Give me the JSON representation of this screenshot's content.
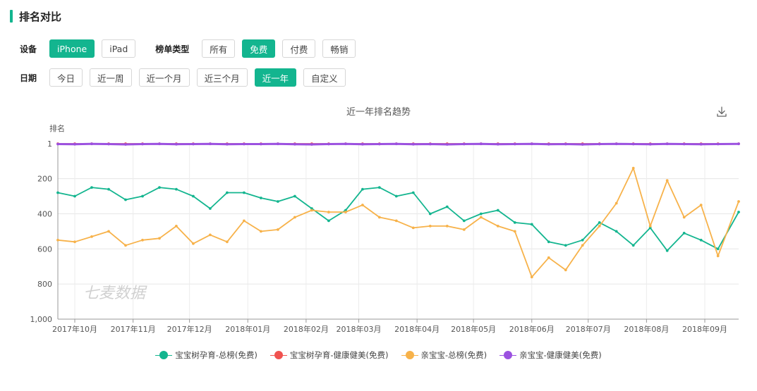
{
  "section": {
    "title": "排名对比"
  },
  "filters": {
    "device_label": "设备",
    "devices": [
      {
        "label": "iPhone",
        "active": true
      },
      {
        "label": "iPad",
        "active": false
      }
    ],
    "list_type_label": "榜单类型",
    "list_types": [
      {
        "label": "所有",
        "active": false
      },
      {
        "label": "免费",
        "active": true
      },
      {
        "label": "付费",
        "active": false
      },
      {
        "label": "畅销",
        "active": false
      }
    ],
    "date_label": "日期",
    "dates": [
      {
        "label": "今日",
        "active": false
      },
      {
        "label": "近一周",
        "active": false
      },
      {
        "label": "近一个月",
        "active": false
      },
      {
        "label": "近三个月",
        "active": false
      },
      {
        "label": "近一年",
        "active": true
      },
      {
        "label": "自定义",
        "active": false
      }
    ]
  },
  "watermark": "七麦数据",
  "icons": {
    "download": "download-icon"
  },
  "chart_data": {
    "type": "line",
    "title": "近一年排名趋势",
    "ylabel": "排名",
    "xlabel": "",
    "ylim": [
      1,
      1000
    ],
    "y_inverted": true,
    "y_ticks": [
      1,
      200,
      400,
      600,
      800,
      1000
    ],
    "y_tick_labels": [
      "1",
      "200",
      "400",
      "600",
      "800",
      "1,000"
    ],
    "x_range": [
      "2017-09-22",
      "2018-09-19"
    ],
    "x_ticks": [
      "2017-10-01",
      "2017-11-01",
      "2017-12-01",
      "2018-01-01",
      "2018-02-01",
      "2018-03-01",
      "2018-04-01",
      "2018-05-01",
      "2018-06-01",
      "2018-07-01",
      "2018-08-01",
      "2018-09-01"
    ],
    "x_tick_labels": [
      "2017年10月",
      "2017年11月",
      "2017年12月",
      "2018年01月",
      "2018年02月",
      "2018年03月",
      "2018年04月",
      "2018年05月",
      "2018年06月",
      "2018年07月",
      "2018年08月",
      "2018年09月"
    ],
    "grid": true,
    "legend_position": "bottom",
    "x": [
      "2017-09-22",
      "2017-10-01",
      "2017-10-10",
      "2017-10-19",
      "2017-10-28",
      "2017-11-06",
      "2017-11-15",
      "2017-11-24",
      "2017-12-03",
      "2017-12-12",
      "2017-12-21",
      "2017-12-30",
      "2018-01-08",
      "2018-01-17",
      "2018-01-26",
      "2018-02-04",
      "2018-02-13",
      "2018-02-22",
      "2018-03-03",
      "2018-03-12",
      "2018-03-21",
      "2018-03-30",
      "2018-04-08",
      "2018-04-17",
      "2018-04-26",
      "2018-05-05",
      "2018-05-14",
      "2018-05-23",
      "2018-06-01",
      "2018-06-10",
      "2018-06-19",
      "2018-06-28",
      "2018-07-07",
      "2018-07-16",
      "2018-07-25",
      "2018-08-03",
      "2018-08-12",
      "2018-08-21",
      "2018-08-30",
      "2018-09-08",
      "2018-09-19"
    ],
    "series": [
      {
        "name": "宝宝树孕育-总榜(免费)",
        "color": "#13b58f",
        "values": [
          280,
          300,
          250,
          260,
          320,
          300,
          250,
          260,
          300,
          370,
          280,
          280,
          310,
          330,
          300,
          370,
          440,
          380,
          260,
          250,
          300,
          280,
          400,
          360,
          440,
          400,
          380,
          450,
          460,
          560,
          580,
          550,
          450,
          500,
          580,
          480,
          610,
          510,
          550,
          600,
          390
        ]
      },
      {
        "name": "宝宝树孕育-健康健美(免费)",
        "color": "#f0524f",
        "values": [
          1,
          1,
          1,
          1,
          1,
          1,
          1,
          1,
          1,
          1,
          1,
          1,
          1,
          1,
          1,
          1,
          1,
          1,
          1,
          1,
          1,
          1,
          1,
          1,
          1,
          1,
          1,
          1,
          1,
          1,
          1,
          1,
          1,
          1,
          1,
          1,
          1,
          1,
          1,
          1,
          1
        ]
      },
      {
        "name": "亲宝宝-总榜(免费)",
        "color": "#f7b24a",
        "values": [
          550,
          560,
          530,
          500,
          580,
          550,
          540,
          470,
          570,
          520,
          560,
          440,
          500,
          490,
          420,
          380,
          390,
          390,
          350,
          420,
          440,
          480,
          470,
          470,
          490,
          420,
          470,
          500,
          760,
          650,
          720,
          580,
          470,
          340,
          140,
          470,
          210,
          420,
          350,
          640,
          330
        ]
      },
      {
        "name": "亲宝宝-健康健美(免费)",
        "color": "#9b51e0",
        "values": [
          3,
          4,
          2,
          3,
          5,
          3,
          2,
          4,
          3,
          2,
          4,
          3,
          3,
          2,
          4,
          5,
          3,
          2,
          4,
          3,
          2,
          4,
          3,
          5,
          3,
          2,
          4,
          3,
          2,
          4,
          3,
          5,
          3,
          2,
          3,
          4,
          2,
          3,
          4,
          3,
          2
        ]
      }
    ]
  }
}
